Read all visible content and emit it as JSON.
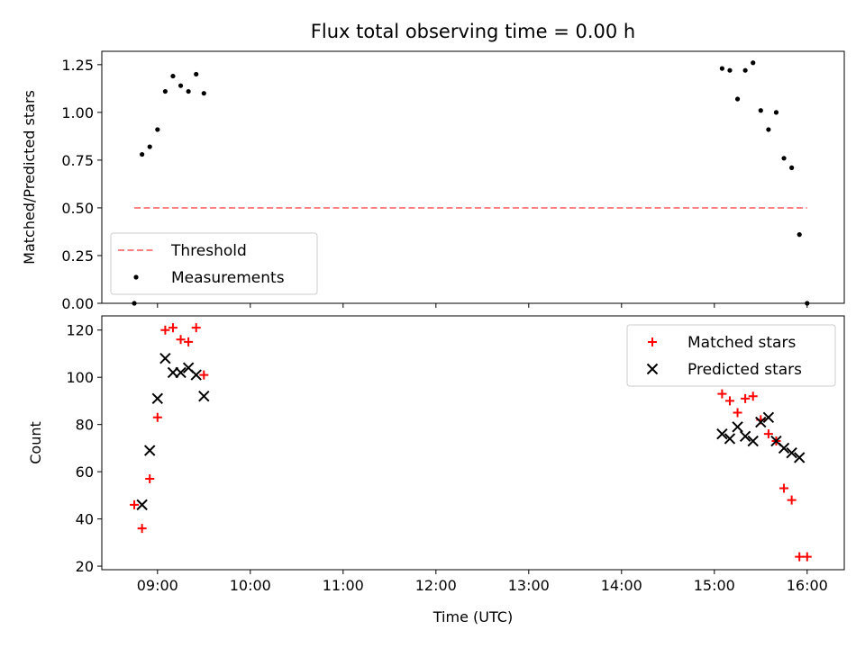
{
  "chart_data": [
    {
      "type": "scatter",
      "title": "Flux total observing time = 0.00 h",
      "xlabel": "",
      "ylabel": "Matched/Predicted stars",
      "xlim": [
        "08:24",
        "16:24"
      ],
      "ylim": [
        0,
        1.32
      ],
      "xticks": [
        "09:00",
        "10:00",
        "11:00",
        "12:00",
        "13:00",
        "14:00",
        "15:00",
        "16:00"
      ],
      "xtick_labels_shown": false,
      "yticks": [
        0.0,
        0.25,
        0.5,
        0.75,
        1.0,
        1.25
      ],
      "ytick_labels": [
        "0.00",
        "0.25",
        "0.50",
        "0.75",
        "1.00",
        "1.25"
      ],
      "legend": {
        "placement": "bottom-left",
        "entries": [
          "Threshold",
          "Measurements"
        ]
      },
      "series": [
        {
          "name": "Threshold",
          "kind": "dashed-line",
          "color": "#ff8080",
          "x": [
            "08:45",
            "16:00"
          ],
          "y": [
            0.5,
            0.5
          ]
        },
        {
          "name": "Measurements",
          "kind": "dot",
          "color": "#000000",
          "x": [
            "08:45",
            "08:50",
            "08:55",
            "09:00",
            "09:05",
            "09:10",
            "09:15",
            "09:20",
            "09:25",
            "09:30",
            "15:05",
            "15:10",
            "15:15",
            "15:20",
            "15:25",
            "15:30",
            "15:35",
            "15:40",
            "15:45",
            "15:50",
            "15:55",
            "16:00"
          ],
          "y": [
            0.0,
            0.78,
            0.82,
            0.91,
            1.11,
            1.19,
            1.14,
            1.11,
            1.2,
            1.1,
            1.23,
            1.22,
            1.07,
            1.22,
            1.26,
            1.01,
            0.91,
            1.0,
            0.76,
            0.71,
            0.36,
            0.0
          ]
        }
      ]
    },
    {
      "type": "scatter",
      "title": "",
      "xlabel": "Time (UTC)",
      "ylabel": "Count",
      "xlim": [
        "08:24",
        "16:24"
      ],
      "ylim": [
        18.5,
        126
      ],
      "xticks": [
        "09:00",
        "10:00",
        "11:00",
        "12:00",
        "13:00",
        "14:00",
        "15:00",
        "16:00"
      ],
      "xtick_labels_shown": true,
      "yticks": [
        20,
        40,
        60,
        80,
        100,
        120
      ],
      "ytick_labels": [
        "20",
        "40",
        "60",
        "80",
        "100",
        "120"
      ],
      "legend": {
        "placement": "top-right",
        "entries": [
          "Matched stars",
          "Predicted stars"
        ]
      },
      "series": [
        {
          "name": "Matched stars",
          "kind": "plus",
          "color": "#ff0000",
          "x": [
            "08:45",
            "08:50",
            "08:55",
            "09:00",
            "09:05",
            "09:10",
            "09:15",
            "09:20",
            "09:25",
            "09:30",
            "15:05",
            "15:10",
            "15:15",
            "15:20",
            "15:25",
            "15:30",
            "15:35",
            "15:40",
            "15:45",
            "15:50",
            "15:55",
            "16:00"
          ],
          "y": [
            46,
            36,
            57,
            83,
            120,
            121,
            116,
            115,
            121,
            101,
            93,
            90,
            85,
            91,
            92,
            82,
            76,
            73,
            53,
            48,
            24,
            24
          ]
        },
        {
          "name": "Predicted stars",
          "kind": "cross",
          "color": "#000000",
          "x": [
            "08:50",
            "08:55",
            "09:00",
            "09:05",
            "09:10",
            "09:15",
            "09:20",
            "09:25",
            "09:30",
            "15:05",
            "15:10",
            "15:15",
            "15:20",
            "15:25",
            "15:30",
            "15:35",
            "15:40",
            "15:45",
            "15:50",
            "15:55"
          ],
          "y": [
            46,
            69,
            91,
            108,
            102,
            102,
            104,
            101,
            92,
            76,
            74,
            79,
            75,
            73,
            81,
            83,
            73,
            70,
            68,
            66
          ]
        }
      ]
    }
  ]
}
